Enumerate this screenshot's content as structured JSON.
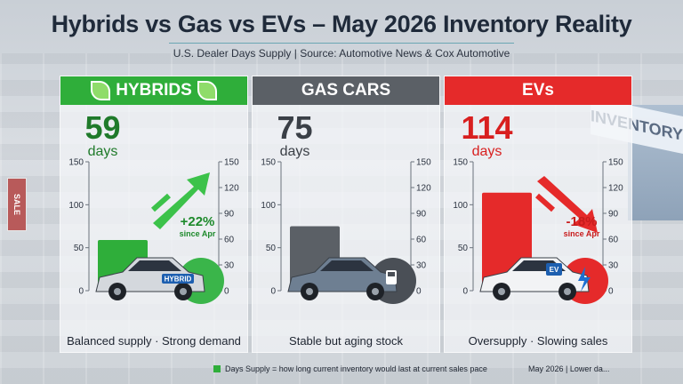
{
  "title": "Hybrids vs Gas vs EVs – May 2026 Inventory Reality",
  "subtitle": "U.S. Dealer Days Supply | Source: Automotive News & Cox Automotive",
  "background": {
    "sign_text": "SALE",
    "building_text": "INVENTORY"
  },
  "chart_data": {
    "type": "bar",
    "categories": [
      "HYBRIDS",
      "GAS CARS",
      "EVs"
    ],
    "values": [
      59,
      75,
      114
    ],
    "unit": "days",
    "ylim": [
      0,
      150
    ],
    "left_ticks": [
      0,
      50,
      100,
      150
    ],
    "right_ticks": [
      0,
      30,
      60,
      90,
      120,
      150
    ],
    "grid": false,
    "colors": {
      "hybrids": "#2fae3a",
      "gas": "#5b6066",
      "evs": "#e52a2a"
    }
  },
  "panels": [
    {
      "key": "hybrids",
      "header": "HYBRIDS",
      "header_color": "#2fae3a",
      "value_text": "59",
      "unit_text": "days",
      "value_color": "#1f7a2a",
      "bar_color": "#2fae3a",
      "value": 59,
      "change_text": "+22%",
      "change_sub": "since Apr",
      "change_color": "#1e8a2c",
      "trend": "up",
      "car_badge": "HYBRID",
      "car_color": "#d4d8dd",
      "caption": "Balanced supply · Strong demand"
    },
    {
      "key": "gas",
      "header": "GAS CARS",
      "header_color": "#5b6066",
      "value_text": "75",
      "unit_text": "days",
      "value_color": "#3a3f46",
      "bar_color": "#5b6066",
      "value": 75,
      "car_badge": "fuel-pump-icon",
      "car_color": "#6e7f92",
      "caption": "Stable but aging stock"
    },
    {
      "key": "evs",
      "header": "EVs",
      "header_color": "#e52a2a",
      "value_text": "114",
      "unit_text": "days",
      "value_color": "#d81f1f",
      "bar_color": "#e52a2a",
      "value": 114,
      "change_text": "-18%",
      "change_sub": "since Apr",
      "change_color": "#c81c1c",
      "trend": "down",
      "car_badge": "EV",
      "car_color": "#f2f3f5",
      "caption": "Oversupply · Slowing sales"
    }
  ],
  "footnote": "Days Supply = how long current inventory would last at current sales pace",
  "dateline": "May 2026 | Lower da..."
}
